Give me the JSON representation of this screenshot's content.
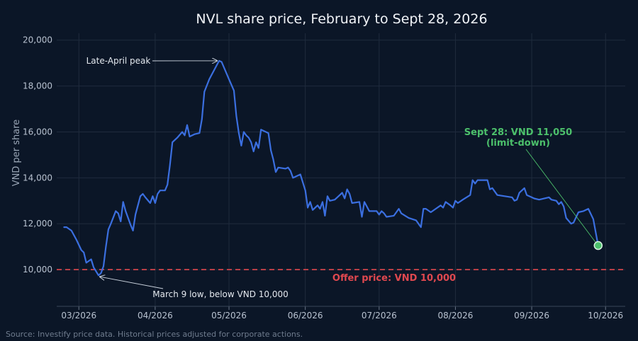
{
  "chart_data": {
    "type": "line",
    "title": "NVL share price, February to Sept 28, 2026",
    "ylabel": "VND per share",
    "ylim": [
      8400,
      20300
    ],
    "xlim": [
      "2026-02-20",
      "2026-10-09"
    ],
    "grid": true,
    "y_ticks": [
      {
        "value": 10000,
        "label": "10,000"
      },
      {
        "value": 12000,
        "label": "12,000"
      },
      {
        "value": 14000,
        "label": "14,000"
      },
      {
        "value": 16000,
        "label": "16,000"
      },
      {
        "value": 18000,
        "label": "18,000"
      },
      {
        "value": 20000,
        "label": "20,000"
      }
    ],
    "x_ticks": [
      {
        "value": "2026-03-01",
        "label": "03/2026"
      },
      {
        "value": "2026-04-01",
        "label": "04/2026"
      },
      {
        "value": "2026-05-01",
        "label": "05/2026"
      },
      {
        "value": "2026-06-01",
        "label": "06/2026"
      },
      {
        "value": "2026-07-01",
        "label": "07/2026"
      },
      {
        "value": "2026-08-01",
        "label": "08/2026"
      },
      {
        "value": "2026-09-01",
        "label": "09/2026"
      },
      {
        "value": "2026-10-01",
        "label": "10/2026"
      }
    ],
    "series": [
      {
        "color": "#3b6fe0",
        "points": [
          [
            "2026-02-23",
            11850
          ],
          [
            "2026-02-24",
            11850
          ],
          [
            "2026-02-26",
            11700
          ],
          [
            "2026-02-28",
            11300
          ],
          [
            "2026-03-02",
            10850
          ],
          [
            "2026-03-03",
            10750
          ],
          [
            "2026-03-04",
            10300
          ],
          [
            "2026-03-06",
            10450
          ],
          [
            "2026-03-07",
            10100
          ],
          [
            "2026-03-09",
            9750
          ],
          [
            "2026-03-10",
            9850
          ],
          [
            "2026-03-11",
            10150
          ],
          [
            "2026-03-12",
            11000
          ],
          [
            "2026-03-13",
            11750
          ],
          [
            "2026-03-14",
            12000
          ],
          [
            "2026-03-16",
            12550
          ],
          [
            "2026-03-17",
            12450
          ],
          [
            "2026-03-18",
            12100
          ],
          [
            "2026-03-19",
            12950
          ],
          [
            "2026-03-20",
            12550
          ],
          [
            "2026-03-22",
            11950
          ],
          [
            "2026-03-23",
            11700
          ],
          [
            "2026-03-24",
            12400
          ],
          [
            "2026-03-26",
            13200
          ],
          [
            "2026-03-27",
            13300
          ],
          [
            "2026-03-28",
            13150
          ],
          [
            "2026-03-30",
            12900
          ],
          [
            "2026-03-31",
            13200
          ],
          [
            "2026-04-01",
            12900
          ],
          [
            "2026-04-02",
            13300
          ],
          [
            "2026-04-03",
            13450
          ],
          [
            "2026-04-05",
            13450
          ],
          [
            "2026-04-06",
            13700
          ],
          [
            "2026-04-07",
            14550
          ],
          [
            "2026-04-08",
            15550
          ],
          [
            "2026-04-10",
            15750
          ],
          [
            "2026-04-12",
            16000
          ],
          [
            "2026-04-13",
            15850
          ],
          [
            "2026-04-14",
            16300
          ],
          [
            "2026-04-15",
            15800
          ],
          [
            "2026-04-17",
            15900
          ],
          [
            "2026-04-19",
            15950
          ],
          [
            "2026-04-20",
            16550
          ],
          [
            "2026-04-21",
            17750
          ],
          [
            "2026-04-23",
            18300
          ],
          [
            "2026-04-25",
            18700
          ],
          [
            "2026-04-27",
            19100
          ],
          [
            "2026-04-28",
            19050
          ],
          [
            "2026-05-01",
            18300
          ],
          [
            "2026-05-03",
            17800
          ],
          [
            "2026-05-04",
            16700
          ],
          [
            "2026-05-05",
            15950
          ],
          [
            "2026-05-06",
            15400
          ],
          [
            "2026-05-07",
            16000
          ],
          [
            "2026-05-08",
            15850
          ],
          [
            "2026-05-09",
            15750
          ],
          [
            "2026-05-10",
            15550
          ],
          [
            "2026-05-11",
            15150
          ],
          [
            "2026-05-12",
            15550
          ],
          [
            "2026-05-13",
            15300
          ],
          [
            "2026-05-14",
            16100
          ],
          [
            "2026-05-17",
            15950
          ],
          [
            "2026-05-18",
            15200
          ],
          [
            "2026-05-19",
            14800
          ],
          [
            "2026-05-20",
            14250
          ],
          [
            "2026-05-21",
            14450
          ],
          [
            "2026-05-24",
            14400
          ],
          [
            "2026-05-25",
            14450
          ],
          [
            "2026-05-26",
            14300
          ],
          [
            "2026-05-27",
            14000
          ],
          [
            "2026-05-30",
            14150
          ],
          [
            "2026-06-01",
            13450
          ],
          [
            "2026-06-02",
            12700
          ],
          [
            "2026-06-03",
            12950
          ],
          [
            "2026-06-04",
            12600
          ],
          [
            "2026-06-06",
            12800
          ],
          [
            "2026-06-07",
            12650
          ],
          [
            "2026-06-08",
            12950
          ],
          [
            "2026-06-09",
            12350
          ],
          [
            "2026-06-10",
            13200
          ],
          [
            "2026-06-11",
            13000
          ],
          [
            "2026-06-13",
            13050
          ],
          [
            "2026-06-15",
            13250
          ],
          [
            "2026-06-16",
            13350
          ],
          [
            "2026-06-17",
            13100
          ],
          [
            "2026-06-18",
            13500
          ],
          [
            "2026-06-19",
            13300
          ],
          [
            "2026-06-20",
            12900
          ],
          [
            "2026-06-23",
            12950
          ],
          [
            "2026-06-24",
            12300
          ],
          [
            "2026-06-25",
            12950
          ],
          [
            "2026-06-26",
            12750
          ],
          [
            "2026-06-27",
            12550
          ],
          [
            "2026-06-30",
            12550
          ],
          [
            "2026-07-01",
            12400
          ],
          [
            "2026-07-02",
            12550
          ],
          [
            "2026-07-03",
            12450
          ],
          [
            "2026-07-04",
            12300
          ],
          [
            "2026-07-07",
            12350
          ],
          [
            "2026-07-09",
            12650
          ],
          [
            "2026-07-10",
            12450
          ],
          [
            "2026-07-13",
            12250
          ],
          [
            "2026-07-16",
            12150
          ],
          [
            "2026-07-18",
            11850
          ],
          [
            "2026-07-19",
            12650
          ],
          [
            "2026-07-20",
            12650
          ],
          [
            "2026-07-22",
            12500
          ],
          [
            "2026-07-24",
            12650
          ],
          [
            "2026-07-26",
            12800
          ],
          [
            "2026-07-27",
            12700
          ],
          [
            "2026-07-28",
            12950
          ],
          [
            "2026-07-30",
            12800
          ],
          [
            "2026-07-31",
            12700
          ],
          [
            "2026-08-01",
            13000
          ],
          [
            "2026-08-02",
            12900
          ],
          [
            "2026-08-04",
            13050
          ],
          [
            "2026-08-07",
            13250
          ],
          [
            "2026-08-08",
            13900
          ],
          [
            "2026-08-09",
            13750
          ],
          [
            "2026-08-10",
            13900
          ],
          [
            "2026-08-14",
            13900
          ],
          [
            "2026-08-15",
            13500
          ],
          [
            "2026-08-16",
            13550
          ],
          [
            "2026-08-18",
            13250
          ],
          [
            "2026-08-21",
            13200
          ],
          [
            "2026-08-24",
            13150
          ],
          [
            "2026-08-25",
            13000
          ],
          [
            "2026-08-26",
            13050
          ],
          [
            "2026-08-27",
            13350
          ],
          [
            "2026-08-29",
            13550
          ],
          [
            "2026-08-30",
            13250
          ],
          [
            "2026-09-01",
            13150
          ],
          [
            "2026-09-02",
            13100
          ],
          [
            "2026-09-04",
            13050
          ],
          [
            "2026-09-08",
            13150
          ],
          [
            "2026-09-09",
            13050
          ],
          [
            "2026-09-11",
            13000
          ],
          [
            "2026-09-12",
            12850
          ],
          [
            "2026-09-13",
            12950
          ],
          [
            "2026-09-14",
            12750
          ],
          [
            "2026-09-15",
            12250
          ],
          [
            "2026-09-17",
            12000
          ],
          [
            "2026-09-18",
            12050
          ],
          [
            "2026-09-20",
            12500
          ],
          [
            "2026-09-22",
            12550
          ],
          [
            "2026-09-24",
            12650
          ],
          [
            "2026-09-26",
            12200
          ],
          [
            "2026-09-28",
            11050
          ]
        ]
      }
    ],
    "reference_line": {
      "value": 10000,
      "label": "Offer price: VND 10,000",
      "color": "#e0484f"
    },
    "annotations": [
      {
        "text": "Late-April peak",
        "x": "2026-04-27",
        "y": 19100
      },
      {
        "text": "March 9 low, below VND 10,000",
        "x": "2026-03-09",
        "y": 9750
      }
    ],
    "highlight": {
      "x": "2026-09-28",
      "y": 11050,
      "lines": [
        "Sept 28: VND 11,050",
        "(limit-down)"
      ],
      "color": "#4cc06b"
    }
  },
  "source": "Source: Investify price data. Historical prices adjusted for corporate actions."
}
